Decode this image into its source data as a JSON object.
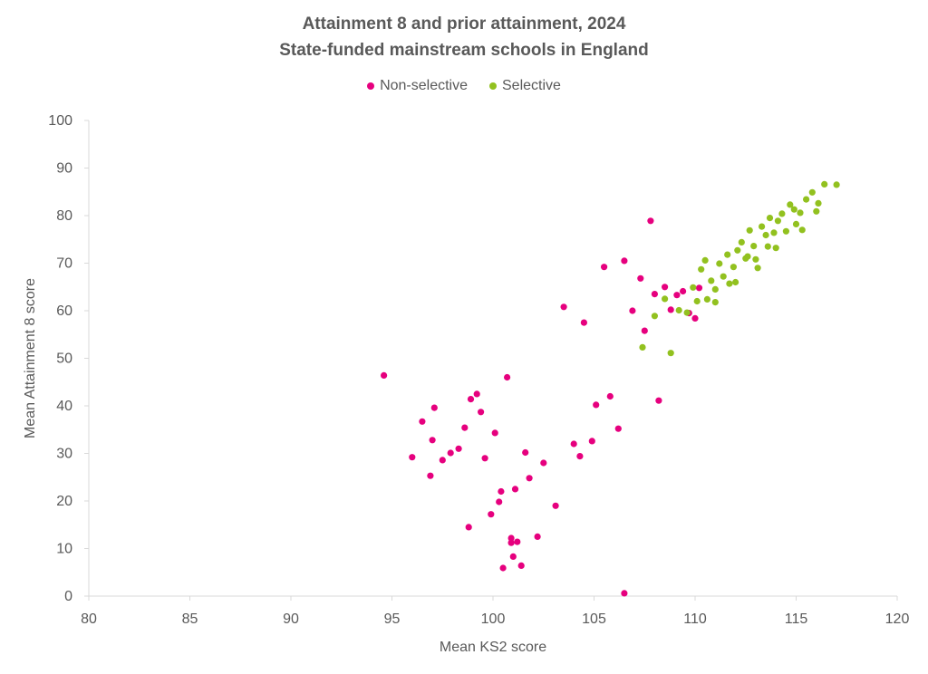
{
  "chart_data": {
    "type": "scatter",
    "title": "Attainment 8 and prior attainment, 2024",
    "subtitle": "State-funded mainstream schools in England",
    "xlabel": "Mean KS2 score",
    "ylabel": "Mean Attainment 8 score",
    "xlim": [
      80,
      120
    ],
    "ylim": [
      0,
      100
    ],
    "x_ticks": [
      "80",
      "85",
      "90",
      "95",
      "100",
      "105",
      "110",
      "115",
      "120"
    ],
    "y_ticks": [
      "0",
      "10",
      "20",
      "30",
      "40",
      "50",
      "60",
      "70",
      "80",
      "90",
      "100"
    ],
    "grid": false,
    "legend_position": "top",
    "series": [
      {
        "name": "Non-selective",
        "color": "#E6007E",
        "points": [
          [
            94.6,
            46.4
          ],
          [
            96.0,
            29.2
          ],
          [
            96.5,
            36.7
          ],
          [
            96.9,
            25.3
          ],
          [
            97.0,
            32.8
          ],
          [
            97.1,
            39.6
          ],
          [
            97.5,
            28.6
          ],
          [
            97.9,
            30.1
          ],
          [
            98.3,
            31.0
          ],
          [
            98.6,
            35.4
          ],
          [
            98.8,
            14.5
          ],
          [
            98.9,
            41.4
          ],
          [
            99.2,
            42.5
          ],
          [
            99.4,
            38.7
          ],
          [
            99.6,
            29.0
          ],
          [
            99.9,
            17.2
          ],
          [
            100.1,
            34.3
          ],
          [
            100.3,
            19.8
          ],
          [
            100.4,
            22.0
          ],
          [
            100.5,
            5.9
          ],
          [
            100.7,
            46.0
          ],
          [
            100.9,
            12.2
          ],
          [
            100.9,
            11.2
          ],
          [
            101.0,
            8.3
          ],
          [
            101.1,
            22.5
          ],
          [
            101.2,
            11.4
          ],
          [
            101.4,
            6.4
          ],
          [
            101.6,
            30.2
          ],
          [
            101.8,
            24.8
          ],
          [
            102.2,
            12.5
          ],
          [
            102.5,
            28.0
          ],
          [
            103.1,
            19.0
          ],
          [
            103.5,
            60.8
          ],
          [
            104.0,
            32.0
          ],
          [
            104.3,
            29.4
          ],
          [
            104.5,
            57.5
          ],
          [
            104.9,
            32.6
          ],
          [
            105.1,
            40.2
          ],
          [
            105.5,
            69.2
          ],
          [
            105.8,
            42.0
          ],
          [
            106.2,
            35.2
          ],
          [
            106.5,
            70.5
          ],
          [
            106.5,
            0.6
          ],
          [
            106.9,
            60.0
          ],
          [
            107.3,
            66.8
          ],
          [
            107.5,
            55.8
          ],
          [
            107.8,
            78.9
          ],
          [
            108.0,
            63.5
          ],
          [
            108.2,
            41.1
          ],
          [
            108.5,
            65.0
          ],
          [
            108.8,
            60.2
          ],
          [
            109.1,
            63.3
          ],
          [
            109.4,
            64.1
          ],
          [
            109.7,
            59.5
          ],
          [
            110.0,
            58.4
          ],
          [
            110.2,
            64.8
          ]
        ]
      },
      {
        "name": "Selective",
        "color": "#92C11F",
        "points": [
          [
            107.4,
            52.3
          ],
          [
            108.0,
            58.9
          ],
          [
            108.5,
            62.5
          ],
          [
            108.8,
            51.1
          ],
          [
            109.2,
            60.1
          ],
          [
            109.6,
            59.6
          ],
          [
            109.9,
            64.9
          ],
          [
            110.1,
            62.0
          ],
          [
            110.3,
            68.7
          ],
          [
            110.5,
            70.6
          ],
          [
            110.8,
            66.3
          ],
          [
            111.0,
            64.5
          ],
          [
            111.2,
            69.9
          ],
          [
            111.4,
            67.2
          ],
          [
            111.6,
            71.8
          ],
          [
            111.9,
            69.2
          ],
          [
            112.1,
            72.7
          ],
          [
            112.3,
            74.4
          ],
          [
            112.5,
            71.0
          ],
          [
            112.7,
            76.9
          ],
          [
            112.9,
            73.6
          ],
          [
            113.1,
            69.0
          ],
          [
            113.3,
            77.7
          ],
          [
            113.5,
            75.9
          ],
          [
            113.7,
            79.5
          ],
          [
            113.9,
            76.4
          ],
          [
            114.1,
            78.9
          ],
          [
            114.3,
            80.4
          ],
          [
            114.5,
            76.7
          ],
          [
            114.7,
            82.3
          ],
          [
            114.9,
            81.3
          ],
          [
            115.2,
            80.6
          ],
          [
            115.5,
            83.4
          ],
          [
            115.8,
            84.9
          ],
          [
            116.1,
            82.6
          ],
          [
            116.4,
            86.6
          ],
          [
            117.0,
            86.5
          ],
          [
            113.0,
            70.8
          ],
          [
            112.0,
            66.0
          ],
          [
            111.0,
            61.8
          ],
          [
            110.6,
            62.4
          ],
          [
            114.0,
            73.2
          ],
          [
            115.0,
            78.2
          ],
          [
            113.6,
            73.5
          ],
          [
            112.6,
            71.4
          ],
          [
            116.0,
            80.9
          ],
          [
            115.3,
            77.0
          ],
          [
            111.7,
            65.7
          ]
        ]
      }
    ]
  }
}
